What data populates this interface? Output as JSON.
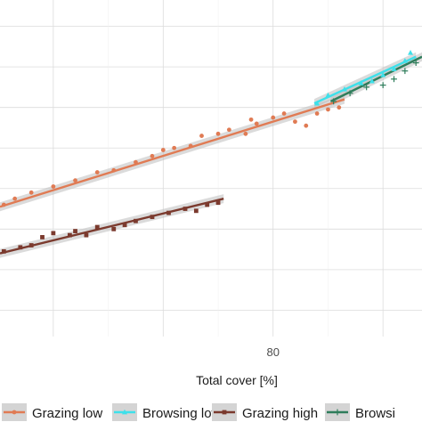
{
  "chart_data": {
    "type": "scatter",
    "title": "",
    "xlabel": "Total cover [%]",
    "ylabel": "",
    "grid": true,
    "legend_position": "bottom",
    "x_ticks": [
      80
    ],
    "xlim": [
      30.3,
      107.1
    ],
    "ylim": [
      0.35,
      8.65
    ],
    "series": [
      {
        "name": "Grazing low",
        "color": "#e07b54",
        "marker": "circle",
        "points": [
          [
            31,
            3.6
          ],
          [
            33,
            3.75
          ],
          [
            36,
            3.9
          ],
          [
            40,
            4.05
          ],
          [
            44,
            4.2
          ],
          [
            48,
            4.4
          ],
          [
            51,
            4.45
          ],
          [
            55,
            4.65
          ],
          [
            58,
            4.8
          ],
          [
            60,
            4.95
          ],
          [
            62,
            5.0
          ],
          [
            65,
            5.05
          ],
          [
            67,
            5.3
          ],
          [
            70,
            5.35
          ],
          [
            72,
            5.45
          ],
          [
            75,
            5.35
          ],
          [
            76,
            5.7
          ],
          [
            77,
            5.6
          ],
          [
            80,
            5.75
          ],
          [
            82,
            5.85
          ],
          [
            84,
            5.65
          ],
          [
            86,
            5.55
          ],
          [
            88,
            5.85
          ],
          [
            90,
            5.95
          ],
          [
            92,
            6.0
          ]
        ],
        "fit": {
          "x": [
            30.3,
            93
          ],
          "y": [
            3.55,
            6.2
          ]
        }
      },
      {
        "name": "Browsing low",
        "color": "#3ee0ea",
        "marker": "triangle",
        "points": [
          [
            88,
            6.1
          ],
          [
            90,
            6.3
          ],
          [
            93,
            6.45
          ],
          [
            96,
            6.6
          ],
          [
            98,
            6.65
          ],
          [
            100,
            6.8
          ],
          [
            102,
            6.95
          ],
          [
            104,
            7.15
          ],
          [
            105,
            7.35
          ]
        ],
        "fit": {
          "x": [
            87.5,
            106
          ],
          "y": [
            6.1,
            7.25
          ]
        }
      },
      {
        "name": "Grazing high",
        "color": "#7b3a2e",
        "marker": "square",
        "points": [
          [
            31,
            2.45
          ],
          [
            34,
            2.55
          ],
          [
            36,
            2.6
          ],
          [
            38,
            2.8
          ],
          [
            40,
            2.9
          ],
          [
            43,
            2.85
          ],
          [
            44,
            2.95
          ],
          [
            46,
            2.85
          ],
          [
            48,
            3.05
          ],
          [
            51,
            3.0
          ],
          [
            53,
            3.1
          ],
          [
            55,
            3.2
          ],
          [
            58,
            3.3
          ],
          [
            61,
            3.4
          ],
          [
            64,
            3.5
          ],
          [
            66,
            3.45
          ],
          [
            68,
            3.6
          ],
          [
            70,
            3.65
          ]
        ],
        "fit": {
          "x": [
            30.3,
            71
          ],
          "y": [
            2.4,
            3.75
          ]
        }
      },
      {
        "name": "Browsing high",
        "legend_label": "Browsi",
        "color": "#2e7d5b",
        "marker": "plus",
        "points": [
          [
            91,
            6.15
          ],
          [
            94,
            6.35
          ],
          [
            97,
            6.5
          ],
          [
            100,
            6.55
          ],
          [
            102,
            6.7
          ],
          [
            104,
            6.9
          ],
          [
            106,
            7.1
          ]
        ],
        "fit": {
          "x": [
            90.5,
            107.1
          ],
          "y": [
            6.15,
            7.25
          ]
        }
      }
    ]
  }
}
